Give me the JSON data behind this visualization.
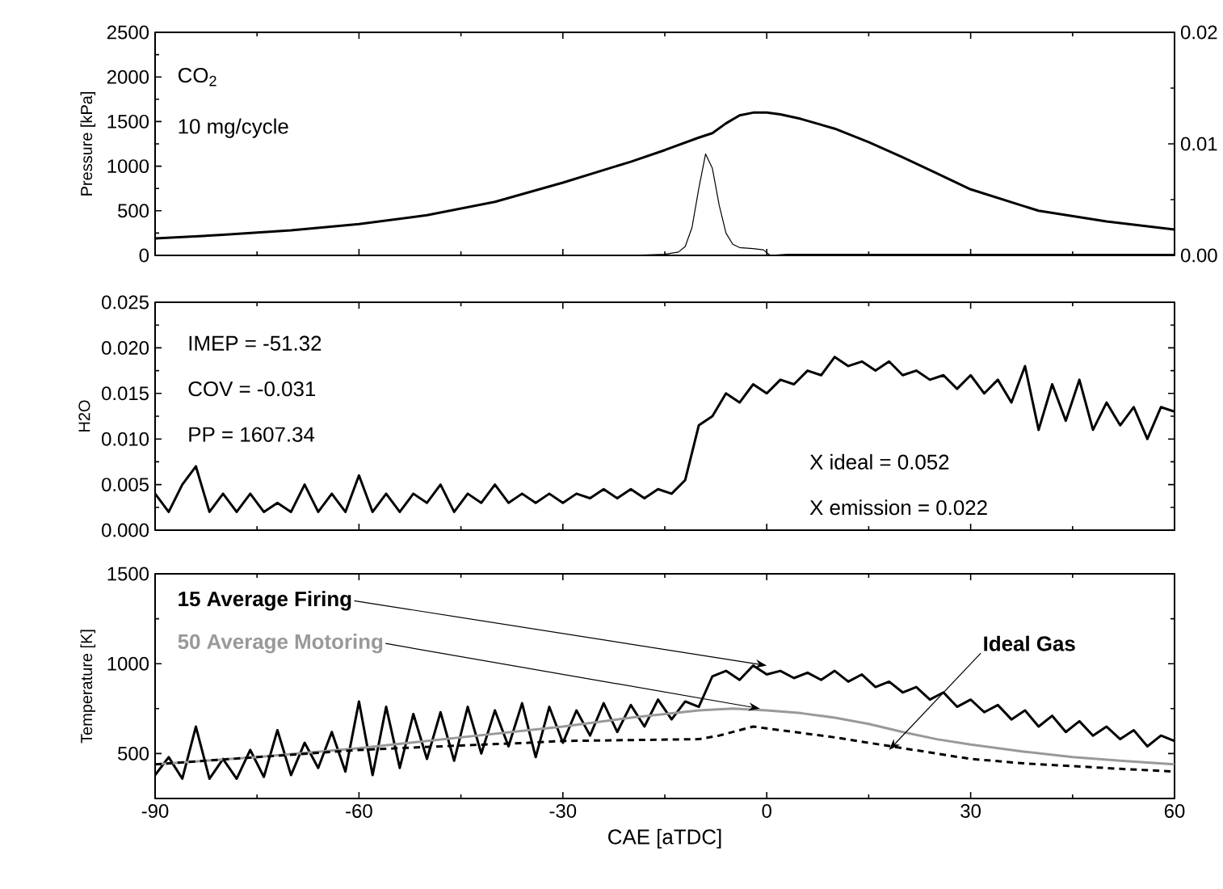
{
  "chart_data": [
    {
      "type": "line",
      "ylabel": "Pressure [kPa]",
      "tick_labels": "y",
      "annotations": [
        "CO$_{2}$",
        "10 mg/cycle"
      ],
      "xlim": [
        -90,
        60
      ],
      "xticks": [
        -90,
        -60,
        -30,
        0,
        30,
        60
      ],
      "ylim": [
        0,
        2500
      ],
      "yticks": [
        0,
        500,
        1000,
        1500,
        2000,
        2500
      ],
      "y2lim": [
        0,
        0.02
      ],
      "y2ticks": [
        {
          "value": 0,
          "label": "0.00"
        },
        {
          "value": 0.01,
          "label": "0.01"
        },
        {
          "value": 0.02,
          "label": "0.02"
        }
      ],
      "series": [
        {
          "color": "#000000",
          "x": [
            -90,
            -80,
            -70,
            -60,
            -50,
            -40,
            -30,
            -20,
            -15,
            -10,
            -8,
            -6,
            -4,
            -2,
            0,
            2,
            5,
            10,
            15,
            20,
            25,
            30,
            40,
            50,
            60
          ],
          "values": [
            190,
            230,
            280,
            350,
            450,
            600,
            815,
            1050,
            1180,
            1320,
            1370,
            1480,
            1570,
            1600,
            1600,
            1580,
            1530,
            1420,
            1270,
            1100,
            920,
            740,
            500,
            380,
            290
          ]
        },
        {
          "color": "#000000",
          "axis": "y2",
          "x": [
            -90,
            -20,
            -15,
            -13,
            -12,
            -11,
            -10,
            -9,
            -8,
            -7,
            -6,
            -5,
            -4,
            -2,
            -0.5,
            0.5,
            3,
            10,
            20,
            40,
            60
          ],
          "values": [
            0,
            0,
            0.0001,
            0.0003,
            0.0008,
            0.0025,
            0.006,
            0.0091,
            0.0078,
            0.0045,
            0.002,
            0.001,
            0.0007,
            0.0006,
            0.0005,
            0,
            0.0001,
            0.0001,
            0.0001,
            0.0001,
            0.0001
          ]
        }
      ]
    },
    {
      "type": "line",
      "ylabel": "H2O",
      "tick_labels": "y",
      "annotations": [
        "IMEP = -51.32",
        "COV = -0.031",
        "PP = 1607.34",
        "X ideal = 0.052",
        "X emission = 0.022"
      ],
      "xlim": [
        -90,
        60
      ],
      "xticks": [
        -90,
        -60,
        -30,
        0,
        30,
        60
      ],
      "ylim": [
        0,
        0.025
      ],
      "yticks": [
        {
          "value": 0,
          "label": "0.000"
        },
        {
          "value": 0.005,
          "label": "0.005"
        },
        {
          "value": 0.01,
          "label": "0.010"
        },
        {
          "value": 0.015,
          "label": "0.015"
        },
        {
          "value": 0.02,
          "label": "0.020"
        },
        {
          "value": 0.025,
          "label": "0.025"
        }
      ],
      "series": [
        {
          "color": "#000000",
          "x": [
            -90,
            -88,
            -86,
            -84,
            -82,
            -80,
            -78,
            -76,
            -74,
            -72,
            -70,
            -68,
            -66,
            -64,
            -62,
            -60,
            -58,
            -56,
            -54,
            -52,
            -50,
            -48,
            -46,
            -44,
            -42,
            -40,
            -38,
            -36,
            -34,
            -32,
            -30,
            -28,
            -26,
            -24,
            -22,
            -20,
            -18,
            -16,
            -14,
            -12,
            -10,
            -8,
            -6,
            -4,
            -2,
            0,
            2,
            4,
            6,
            8,
            10,
            12,
            14,
            16,
            18,
            20,
            22,
            24,
            26,
            28,
            30,
            32,
            34,
            36,
            38,
            40,
            42,
            44,
            46,
            48,
            50,
            52,
            54,
            56,
            58,
            60
          ],
          "values": [
            0.004,
            0.002,
            0.005,
            0.007,
            0.002,
            0.004,
            0.002,
            0.004,
            0.002,
            0.003,
            0.002,
            0.005,
            0.002,
            0.004,
            0.002,
            0.006,
            0.002,
            0.004,
            0.002,
            0.004,
            0.003,
            0.005,
            0.002,
            0.004,
            0.003,
            0.005,
            0.003,
            0.004,
            0.003,
            0.004,
            0.003,
            0.004,
            0.0035,
            0.0045,
            0.0035,
            0.0045,
            0.0035,
            0.0045,
            0.004,
            0.0055,
            0.0115,
            0.0125,
            0.015,
            0.014,
            0.016,
            0.015,
            0.0165,
            0.016,
            0.0175,
            0.017,
            0.019,
            0.018,
            0.0185,
            0.0175,
            0.0185,
            0.017,
            0.0175,
            0.0165,
            0.017,
            0.0155,
            0.017,
            0.015,
            0.0165,
            0.014,
            0.018,
            0.011,
            0.016,
            0.012,
            0.0165,
            0.011,
            0.014,
            0.0115,
            0.0135,
            0.01,
            0.0135,
            0.013
          ]
        }
      ]
    },
    {
      "type": "line",
      "ylabel": "Temperature [K]",
      "xlabel": "CAE [aTDC]",
      "annotations": [
        {
          "text": "15 Average Firing",
          "x": 0,
          "y": 990
        },
        {
          "text": "50 Average Motoring",
          "x": -1,
          "y": 750
        },
        {
          "text": "Ideal Gas",
          "x": 18,
          "y": 520
        }
      ],
      "xlim": [
        -90,
        60
      ],
      "xticks": [
        -90,
        -60,
        -30,
        0,
        30,
        60
      ],
      "ylim": [
        250,
        1500
      ],
      "yticks": [
        500,
        1000,
        1500
      ],
      "series": [
        {
          "color": "#000000",
          "x": [
            -90,
            -88,
            -86,
            -84,
            -82,
            -80,
            -78,
            -76,
            -74,
            -72,
            -70,
            -68,
            -66,
            -64,
            -62,
            -60,
            -58,
            -56,
            -54,
            -52,
            -50,
            -48,
            -46,
            -44,
            -42,
            -40,
            -38,
            -36,
            -34,
            -32,
            -30,
            -28,
            -26,
            -24,
            -22,
            -20,
            -18,
            -16,
            -14,
            -12,
            -10,
            -8,
            -6,
            -4,
            -2,
            0,
            2,
            4,
            6,
            8,
            10,
            12,
            14,
            16,
            18,
            20,
            22,
            24,
            26,
            28,
            30,
            32,
            34,
            36,
            38,
            40,
            42,
            44,
            46,
            48,
            50,
            52,
            54,
            56,
            58,
            60
          ],
          "values": [
            380,
            480,
            360,
            650,
            360,
            470,
            360,
            520,
            370,
            630,
            380,
            560,
            420,
            620,
            400,
            790,
            380,
            760,
            420,
            720,
            470,
            730,
            460,
            760,
            500,
            740,
            540,
            780,
            480,
            760,
            560,
            740,
            600,
            780,
            620,
            770,
            650,
            800,
            690,
            790,
            760,
            930,
            960,
            910,
            990,
            940,
            960,
            920,
            950,
            910,
            960,
            900,
            940,
            870,
            900,
            840,
            870,
            800,
            840,
            760,
            800,
            730,
            770,
            690,
            740,
            650,
            710,
            620,
            680,
            600,
            650,
            580,
            630,
            540,
            600,
            570
          ]
        },
        {
          "color": "#999999",
          "x": [
            -90,
            -75,
            -60,
            -45,
            -30,
            -20,
            -10,
            -5,
            0,
            5,
            10,
            15,
            20,
            25,
            30,
            38,
            45,
            52,
            60
          ],
          "values": [
            440,
            480,
            530,
            590,
            650,
            700,
            740,
            750,
            740,
            725,
            700,
            665,
            620,
            580,
            550,
            510,
            480,
            460,
            440
          ]
        },
        {
          "color": "#000000",
          "line_style": "dashed",
          "x": [
            -90,
            -75,
            -60,
            -45,
            -35,
            -30,
            -20,
            -10,
            -7,
            -4,
            -2,
            0,
            5,
            10,
            15,
            20,
            25,
            30,
            38,
            45,
            52,
            60
          ],
          "values": [
            440,
            480,
            520,
            545,
            560,
            570,
            575,
            580,
            600,
            630,
            650,
            640,
            615,
            590,
            560,
            530,
            500,
            470,
            445,
            430,
            415,
            400
          ]
        }
      ]
    }
  ]
}
